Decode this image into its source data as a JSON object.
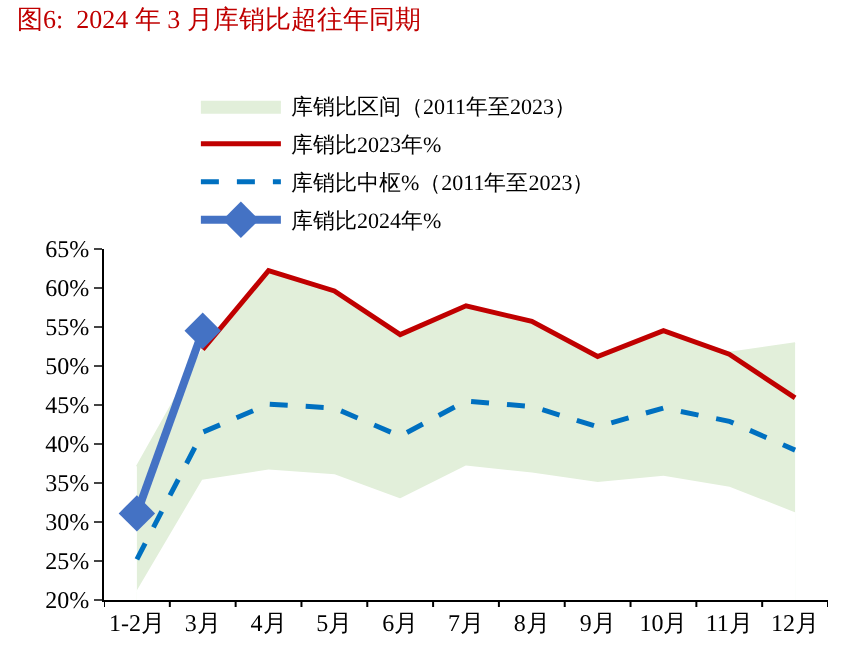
{
  "chart_data": {
    "type": "line",
    "title": "图6:  2024 年 3 月库销比超往年同期",
    "categories": [
      "1-2月",
      "3月",
      "4月",
      "5月",
      "6月",
      "7月",
      "8月",
      "9月",
      "10月",
      "11月",
      "12月"
    ],
    "series": [
      {
        "name": "库销比区间（2011年至2023）",
        "type": "area",
        "color": "#e2efda",
        "values": [
          37.1,
          52.1,
          62.2,
          59.6,
          54,
          57.7,
          55.7,
          51.2,
          54.5,
          51.7,
          52.9
        ]
      },
      {
        "type": "area",
        "color": "#ffffff",
        "values": [
          21,
          35.3,
          36.6,
          36,
          32.9,
          37.1,
          36.2,
          35,
          35.8,
          34.4,
          31.1
        ]
      },
      {
        "name": "库销比2023年%",
        "color": "#c00000",
        "values": [
          null,
          52.1,
          62.2,
          59.6,
          54,
          57.7,
          55.7,
          51.2,
          54.5,
          51.5,
          45.9
        ]
      },
      {
        "name": "库销比中枢%（2011年至2023）",
        "color": "#0070c0",
        "line_style": "dashed",
        "values": [
          25.2,
          41.5,
          45.1,
          44.6,
          41,
          45.5,
          44.8,
          42.2,
          44.6,
          42.9,
          39.2
        ]
      },
      {
        "name": "库销比2024年%",
        "color": "#4472c4",
        "marker": "diamond",
        "values": [
          31.1,
          54.5,
          null,
          null,
          null,
          null,
          null,
          null,
          null,
          null,
          null
        ]
      }
    ],
    "ylim": [
      20,
      65
    ],
    "yticks": [
      {
        "value": 20,
        "label": "20%"
      },
      {
        "value": 25,
        "label": "25%"
      },
      {
        "value": 30,
        "label": "30%"
      },
      {
        "value": 35,
        "label": "35%"
      },
      {
        "value": 40,
        "label": "40%"
      },
      {
        "value": 45,
        "label": "45%"
      },
      {
        "value": 50,
        "label": "50%"
      },
      {
        "value": 55,
        "label": "55%"
      },
      {
        "value": 60,
        "label": "60%"
      },
      {
        "value": 65,
        "label": "65%"
      }
    ],
    "grid": false,
    "legend": "top",
    "marker": "none",
    "line_style": "solid"
  }
}
